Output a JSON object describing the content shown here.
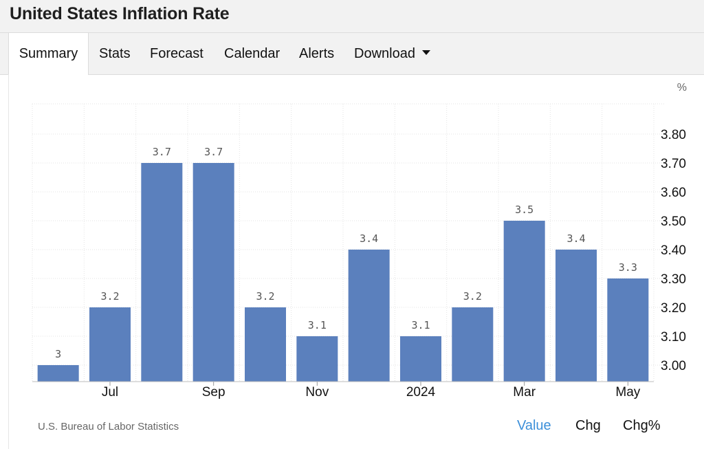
{
  "page": {
    "title": "United States Inflation Rate",
    "tabs": [
      {
        "label": "Summary",
        "active": true
      },
      {
        "label": "Stats",
        "active": false
      },
      {
        "label": "Forecast",
        "active": false
      },
      {
        "label": "Calendar",
        "active": false
      },
      {
        "label": "Alerts",
        "active": false
      },
      {
        "label": "Download",
        "active": false,
        "icon": "caret-down-icon"
      }
    ],
    "source": "U.S. Bureau of Labor Statistics",
    "view_toggles": [
      {
        "label": "Value",
        "active": true
      },
      {
        "label": "Chg",
        "active": false
      },
      {
        "label": "Chg%",
        "active": false
      }
    ],
    "colors": {
      "bar": "#5b80bd",
      "active_toggle": "#3b8fd9"
    }
  },
  "chart_data": {
    "type": "bar",
    "title": "",
    "unit_label": "%",
    "categories": [
      "",
      "Jul",
      "",
      "Sep",
      "",
      "Nov",
      "",
      "2024",
      "",
      "Mar",
      "",
      "May"
    ],
    "values": [
      3.0,
      3.2,
      3.7,
      3.7,
      3.2,
      3.1,
      3.4,
      3.1,
      3.2,
      3.5,
      3.4,
      3.3
    ],
    "data_labels": [
      "3",
      "3.2",
      "3.7",
      "3.7",
      "3.2",
      "3.1",
      "3.4",
      "3.1",
      "3.2",
      "3.5",
      "3.4",
      "3.3"
    ],
    "y_ticks": [
      "3.00",
      "3.10",
      "3.20",
      "3.30",
      "3.40",
      "3.50",
      "3.60",
      "3.70",
      "3.80"
    ],
    "y_axis_side": "right",
    "ylim": [
      2.95,
      3.9
    ],
    "grid": true,
    "legend": "none"
  }
}
